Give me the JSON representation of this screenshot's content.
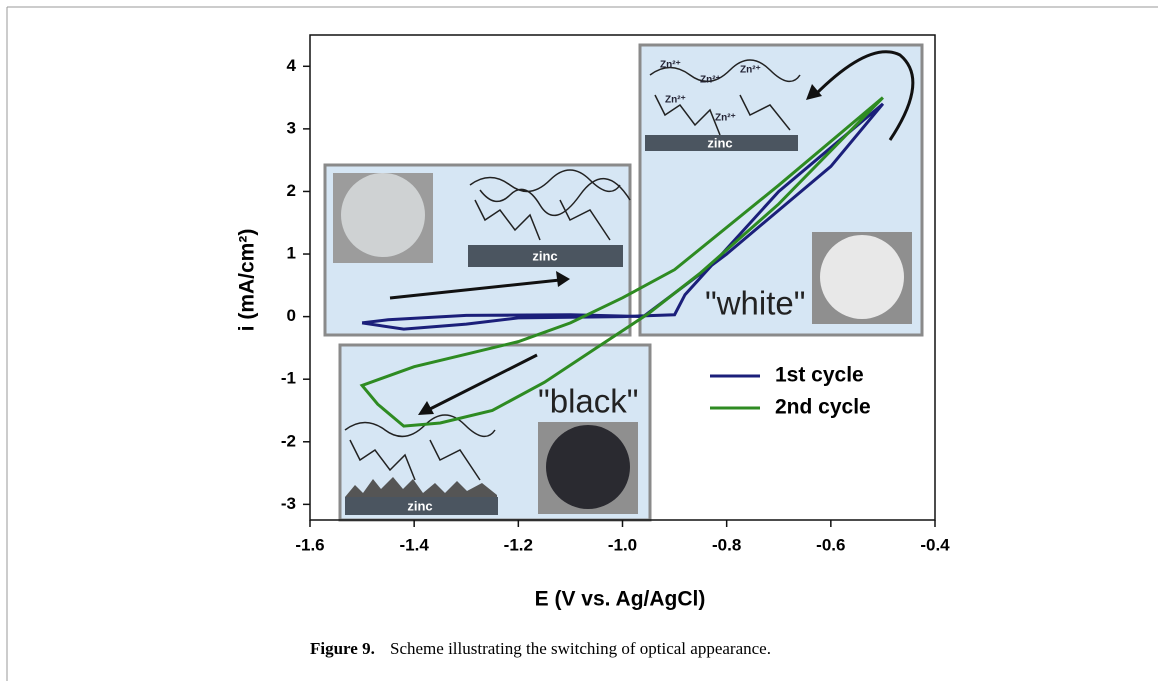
{
  "chart_data": {
    "type": "line",
    "xlabel": "E (V vs. Ag/AgCl)",
    "ylabel": "i (mA/cm²)",
    "xlim": [
      -1.6,
      -0.4
    ],
    "xticks": [
      -1.6,
      -1.4,
      -1.2,
      {
        "value": -1,
        "label": "-1.0"
      },
      -0.8,
      -0.6,
      -0.4
    ],
    "ylim": [
      -3.25,
      4.5
    ],
    "yticks": [
      -3,
      -2,
      -1,
      0,
      1,
      2,
      3,
      4
    ],
    "series": [
      {
        "name": "1st cycle",
        "color": "#1b1f7a",
        "x": [
          -1.5,
          -1.42,
          -1.3,
          -1.2,
          -1.0,
          -0.9,
          -0.88,
          -0.7,
          -0.5,
          -0.6,
          -0.8,
          -0.96,
          -1.1,
          -1.3,
          -1.45,
          -1.5
        ],
        "values": [
          -0.1,
          -0.2,
          -0.12,
          -0.02,
          0.0,
          0.03,
          0.35,
          2.0,
          3.4,
          2.4,
          1.0,
          0.0,
          0.03,
          0.02,
          -0.05,
          -0.1
        ]
      },
      {
        "name": "2nd cycle",
        "color": "#2e8b22",
        "x": [
          -0.5,
          -0.7,
          -0.9,
          -1.0,
          -1.1,
          -1.2,
          -1.3,
          -1.4,
          -1.5,
          -1.47,
          -1.42,
          -1.35,
          -1.25,
          -1.15,
          -1.05,
          -0.95,
          -0.85,
          -0.7,
          -0.5
        ],
        "values": [
          3.5,
          2.1,
          0.75,
          0.3,
          -0.1,
          -0.4,
          -0.6,
          -0.8,
          -1.1,
          -1.4,
          -1.75,
          -1.7,
          -1.5,
          -1.05,
          -0.5,
          0.05,
          0.7,
          1.8,
          3.5
        ]
      }
    ],
    "annotations": [
      "\"white\"",
      "\"black\"",
      "zinc",
      "Zn²⁺"
    ]
  },
  "caption": {
    "label": "Figure 9.",
    "text": "Scheme illustrating the switching of optical appearance."
  }
}
